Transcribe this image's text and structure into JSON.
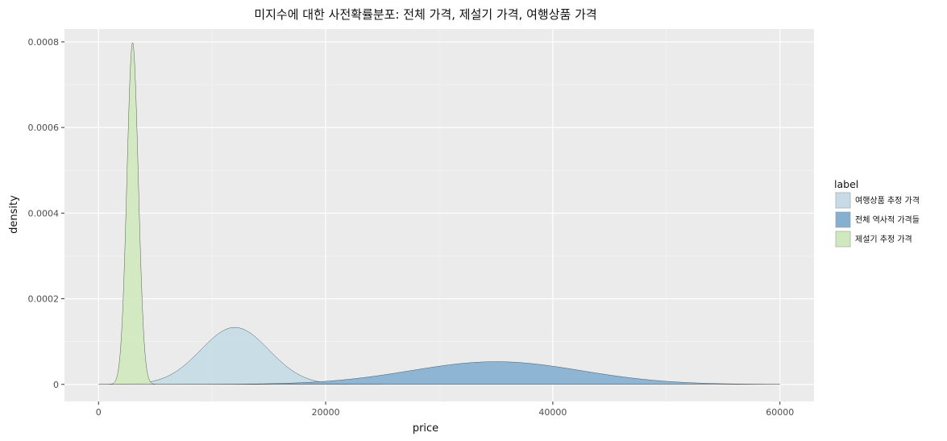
{
  "chart_data": {
    "type": "area",
    "title": "미지수에 대한 사전확률분포: 전체 가격, 제설기 가격, 여행상품 가격",
    "xlabel": "price",
    "ylabel": "density",
    "xlim": [
      -3000,
      63000
    ],
    "ylim": [
      -4e-05,
      0.00083
    ],
    "x_ticks": [
      0,
      20000,
      40000,
      60000
    ],
    "x_tick_labels": [
      "0",
      "20000",
      "40000",
      "60000"
    ],
    "y_ticks": [
      0,
      0.0002,
      0.0004,
      0.0006,
      0.0008
    ],
    "y_tick_labels": [
      "0",
      "0.0002",
      "0.0004",
      "0.0006",
      "0.0008"
    ],
    "grid": true,
    "legend": {
      "title": "label",
      "position": "right",
      "entries": [
        "여행상품 추정 가격",
        "전체 역사적 가격들",
        "제설기 추정 가격"
      ]
    },
    "series": [
      {
        "name": "여행상품 추정 가격",
        "color": "#c6dbe6",
        "distribution": "normal",
        "mean": 12000,
        "sd": 3000,
        "range": [
          0,
          25000
        ],
        "peak_density": 0.000133
      },
      {
        "name": "전체 역사적 가격들",
        "color": "#86b0d0",
        "distribution": "normal",
        "mean": 35000,
        "sd": 7500,
        "range": [
          0,
          60000
        ],
        "peak_density": 5.3e-05
      },
      {
        "name": "제설기 추정 가격",
        "color": "#d0e8be",
        "distribution": "normal",
        "mean": 3000,
        "sd": 500,
        "range": [
          0,
          5000
        ],
        "peak_density": 0.000798
      }
    ]
  }
}
